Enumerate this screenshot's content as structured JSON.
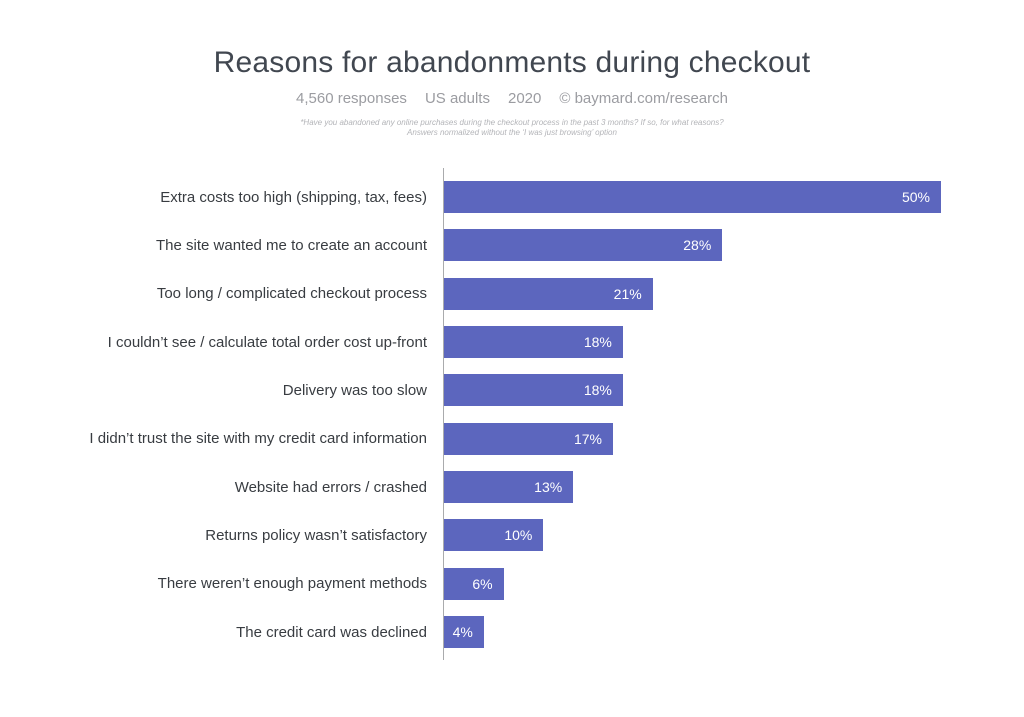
{
  "chart_data": {
    "type": "bar",
    "orientation": "horizontal",
    "title": "Reasons for abandonments during checkout",
    "meta": [
      "4,560 responses",
      "US adults",
      "2020",
      "© baymard.com/research"
    ],
    "footnote_lines": [
      "*Have you abandoned any online purchases during the checkout process in the past 3 months? If so, for what reasons?",
      "Answers normalized without the ‘I was just browsing’ option"
    ],
    "categories": [
      "Extra costs too high (shipping, tax, fees)",
      "The site wanted me to create an account",
      "Too long / complicated checkout process",
      "I couldn’t see / calculate total order cost up-front",
      "Delivery was too slow",
      "I didn’t trust the site with my credit card information",
      "Website had errors / crashed",
      "Returns policy wasn’t satisfactory",
      "There weren’t enough payment methods",
      "The credit card was declined"
    ],
    "values": [
      50,
      28,
      21,
      18,
      18,
      17,
      13,
      10,
      6,
      4
    ],
    "value_suffix": "%",
    "xlabel": "",
    "ylabel": "",
    "xlim": [
      0,
      50
    ],
    "grid": false,
    "legend": false,
    "value_labels": "inside-end",
    "colors": {
      "bar": "#5c66be",
      "value_label": "#ffffff",
      "category_label": "#383c41",
      "axis_line": "#aaabad",
      "title": "#414750",
      "meta": "#9b9ca1",
      "footnote": "#b3b4b8",
      "background": "#ffffff"
    }
  }
}
